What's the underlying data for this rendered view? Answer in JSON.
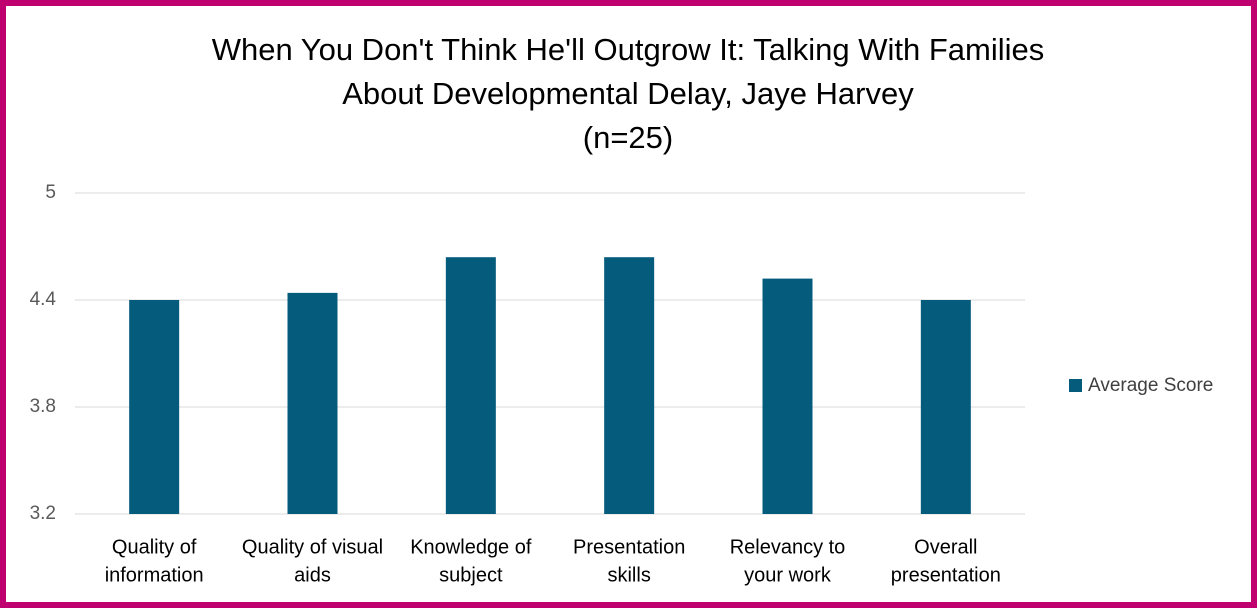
{
  "chart_data": {
    "type": "bar",
    "title": [
      "When You Don't Think He'll Outgrow It: Talking With Families",
      "About Developmental Delay, Jaye Harvey",
      "(n=25)"
    ],
    "categories": [
      [
        "Quality of",
        "information"
      ],
      [
        "Quality of visual",
        "aids"
      ],
      [
        "Knowledge of",
        "subject"
      ],
      [
        "Presentation",
        "skills"
      ],
      [
        "Relevancy to",
        "your work"
      ],
      [
        "Overall",
        "presentation"
      ]
    ],
    "series": [
      {
        "name": "Average Score",
        "color": "#055b7c",
        "values": [
          4.4,
          4.44,
          4.64,
          4.64,
          4.52,
          4.4
        ]
      }
    ],
    "ylim": [
      3.2,
      5
    ],
    "yticks": [
      3.2,
      3.8,
      4.4,
      5
    ],
    "grid": true,
    "legend": "right"
  }
}
